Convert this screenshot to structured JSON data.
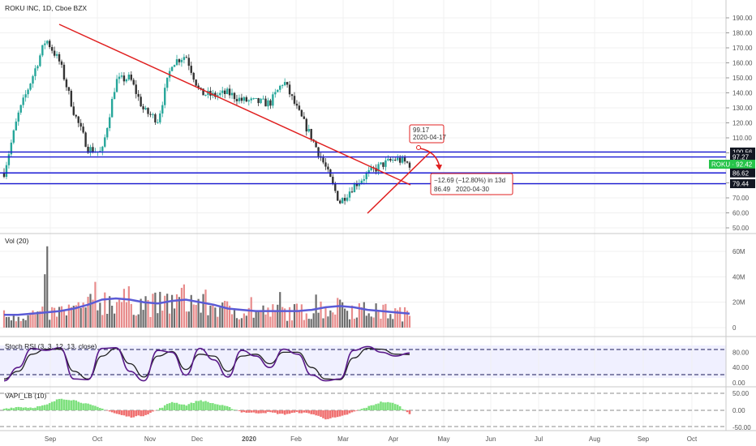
{
  "title": "ROKU INC, 1D, Cboe BZX",
  "colors": {
    "up": "#26a69a",
    "down": "#333333",
    "hline": "#1a1ad4",
    "trend": "#e02020",
    "annotation": "#e02020",
    "vol_up": "#e88c8c",
    "vol_down": "#6d6d6d",
    "vol_ma": "#5b5bd6",
    "stoch_k": "#5a1a8a",
    "stoch_d": "#202020",
    "vapi_pos": "#7de07d",
    "vapi_neg": "#f07070"
  },
  "x_axis": {
    "ticks": [
      "Sep",
      "Oct",
      "Nov",
      "Dec",
      "2020",
      "Feb",
      "Mar",
      "Apr",
      "May",
      "Jun",
      "Jul",
      "Aug",
      "Sep",
      "Oct"
    ]
  },
  "price_panel": {
    "y_ticks": [
      "190.00",
      "180.00",
      "170.00",
      "160.00",
      "150.00",
      "140.00",
      "130.00",
      "120.00",
      "110.00",
      "100.00",
      "90.00",
      "80.00",
      "70.00",
      "60.00",
      "50.00"
    ],
    "levels": [
      {
        "label": "100.56",
        "value": 100.56,
        "style": "dark"
      },
      {
        "label": "97.27",
        "value": 97.27,
        "style": "dark"
      },
      {
        "label": "ROKU · 92.42",
        "value": 92.42,
        "style": "green"
      },
      {
        "label": "86.62",
        "value": 86.62,
        "style": "dark"
      },
      {
        "label": "79.44",
        "value": 79.44,
        "style": "dark"
      }
    ],
    "annotation_top": {
      "price": "99.17",
      "date": "2020-04-17"
    },
    "annotation_bottom": {
      "change": "−12.69 (−12.80%) in 13d",
      "price": "86.49",
      "date": "2020-04-30"
    }
  },
  "volume_panel": {
    "title": "Vol (20)",
    "y_ticks": [
      "60M",
      "40M",
      "20M",
      "0"
    ]
  },
  "stoch_panel": {
    "title": "Stoch RSI (3, 3, 12, 13, close)",
    "y_ticks": [
      "80.00",
      "40.00",
      "0.00"
    ]
  },
  "vapi_panel": {
    "title": "VAPI_LB (10)",
    "y_ticks": [
      "50.00",
      "0.00",
      "-50.00"
    ]
  },
  "chart_data": [
    {
      "type": "line",
      "title": "ROKU INC, 1D, Cboe BZX",
      "description_source": "approximate daily close path read from candles",
      "x": [
        "2019-08-01",
        "2019-08-20",
        "2019-08-30",
        "2019-09-05",
        "2019-09-10",
        "2019-09-17",
        "2019-09-30",
        "2019-10-08",
        "2019-10-22",
        "2019-11-01",
        "2019-11-07",
        "2019-11-15",
        "2019-11-25",
        "2019-12-02",
        "2019-12-10",
        "2019-12-20",
        "2020-01-02",
        "2020-01-15",
        "2020-01-28",
        "2020-02-10",
        "2020-02-20",
        "2020-02-26",
        "2020-03-06",
        "2020-03-12",
        "2020-03-18",
        "2020-03-24",
        "2020-04-01",
        "2020-04-09",
        "2020-04-16",
        "2020-04-17"
      ],
      "y": [
        87,
        125,
        150,
        176,
        160,
        127,
        103,
        100,
        148,
        150,
        128,
        122,
        160,
        165,
        140,
        138,
        140,
        135,
        134,
        133,
        148,
        128,
        110,
        90,
        67,
        78,
        86,
        92,
        96,
        92.42
      ],
      "ylim": [
        50,
        190
      ],
      "horizontal_levels": [
        100.56,
        97.27,
        86.62,
        79.44
      ],
      "trendlines": [
        {
          "from": [
            "2019-09-03",
            176
          ],
          "to": [
            "2020-04-20",
            81
          ]
        },
        {
          "from": [
            "2020-03-18",
            60
          ],
          "to": [
            "2020-04-24",
            98
          ]
        }
      ]
    },
    {
      "type": "bar",
      "title": "Vol (20)",
      "note": "daily volume in millions with 20-day MA",
      "ylim": [
        0,
        65
      ],
      "ma_values": [
        10,
        10,
        11,
        12,
        13,
        15,
        18,
        22,
        23,
        22,
        20,
        19,
        21,
        22,
        20,
        18,
        15,
        14,
        13,
        13,
        13,
        13,
        14,
        16,
        17,
        16,
        14,
        13,
        12,
        11
      ]
    },
    {
      "type": "line",
      "title": "Stoch RSI (3, 3, 12, 13, close)",
      "ylim": [
        0,
        100
      ],
      "bands": [
        80,
        20
      ],
      "series": [
        {
          "name": "K",
          "values": [
            5,
            40,
            90,
            85,
            92,
            10,
            8,
            90,
            92,
            30,
            5,
            85,
            80,
            20,
            90,
            60,
            15,
            85,
            70,
            40,
            88,
            75,
            20,
            5,
            10,
            85,
            95,
            80,
            70,
            78
          ]
        },
        {
          "name": "D",
          "values": [
            10,
            30,
            75,
            88,
            88,
            30,
            10,
            70,
            90,
            50,
            15,
            70,
            82,
            35,
            75,
            70,
            30,
            70,
            75,
            50,
            80,
            80,
            40,
            10,
            8,
            65,
            90,
            88,
            75,
            74
          ]
        }
      ]
    },
    {
      "type": "bar",
      "title": "VAPI_LB (10)",
      "ylim": [
        -60,
        60
      ],
      "values": [
        5,
        10,
        8,
        15,
        35,
        30,
        18,
        5,
        -10,
        -20,
        -15,
        2,
        25,
        15,
        30,
        20,
        10,
        -5,
        -8,
        -6,
        -12,
        -6,
        -10,
        -25,
        -20,
        -5,
        10,
        25,
        20,
        -10
      ]
    }
  ]
}
